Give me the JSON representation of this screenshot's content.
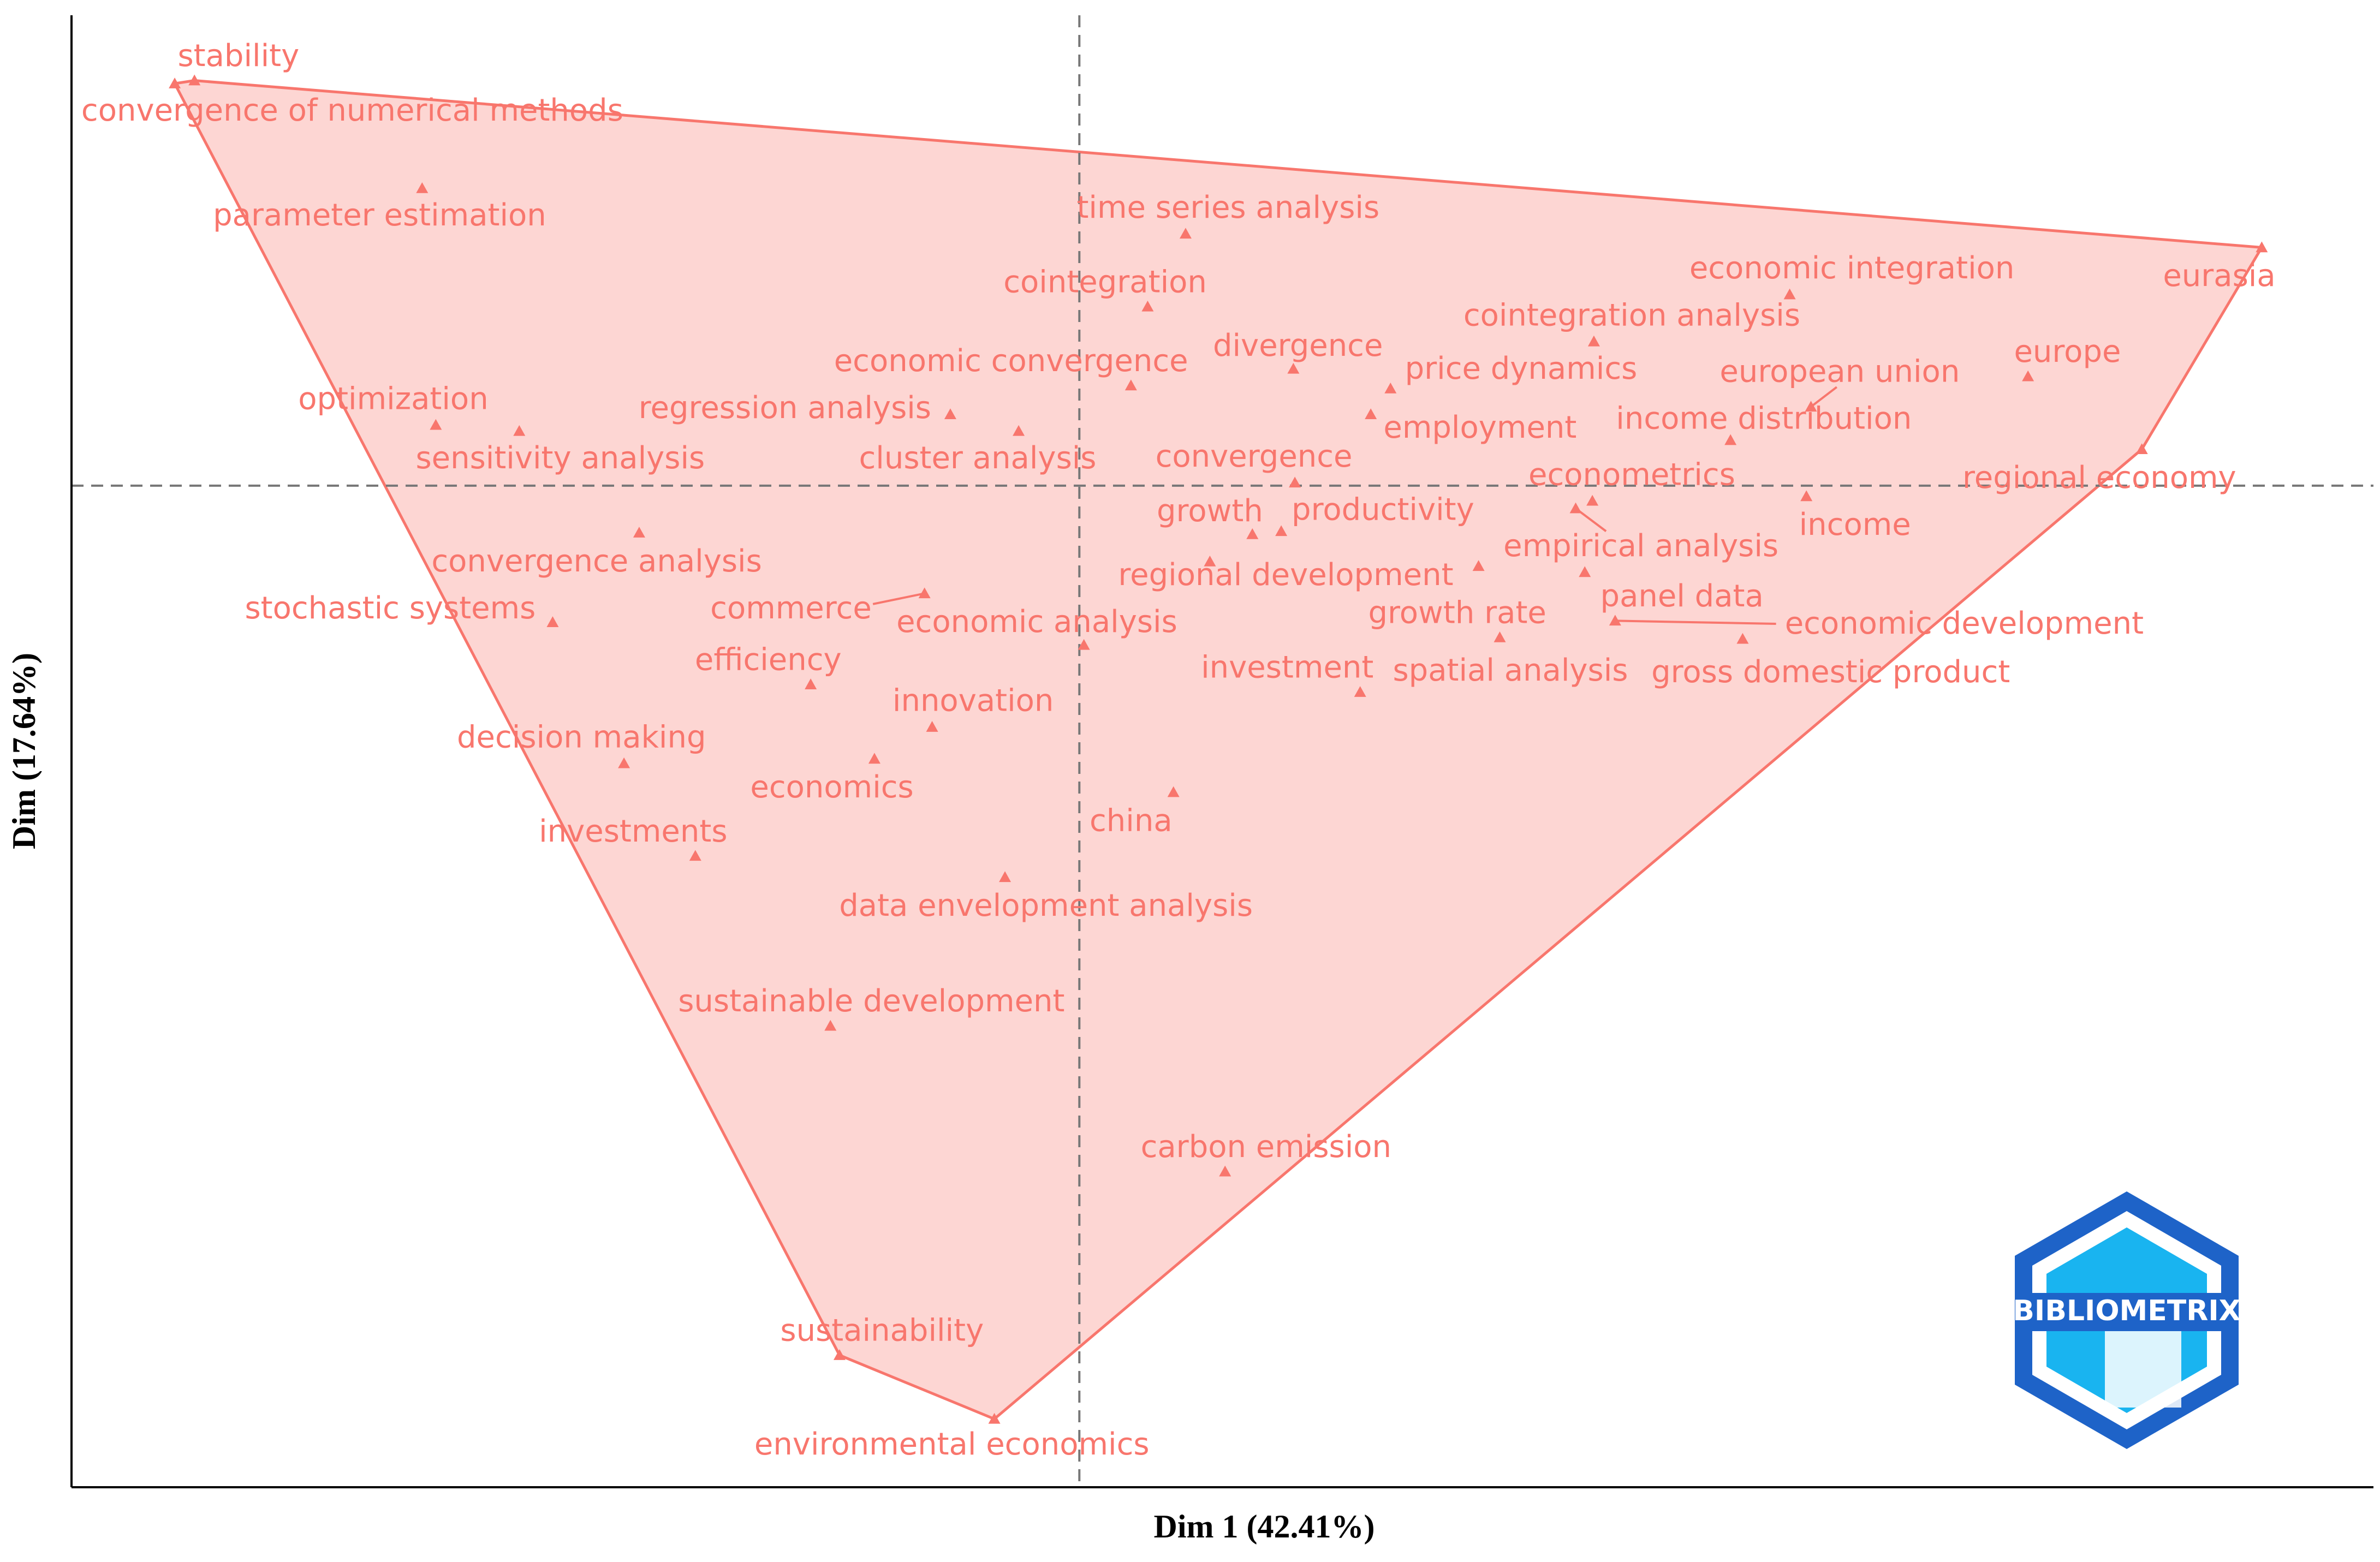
{
  "chart_data": {
    "type": "scatter",
    "x_label": "Dim 1 (42.41%)",
    "y_label": "Dim (17.64%)",
    "logo": "BIBLIOMETRIX",
    "color": "#f8766d",
    "hull": true,
    "zero_lines": true,
    "xlim": [
      -6.64,
      8.49
    ],
    "ylim": [
      -6.6,
      3.1
    ],
    "labels": [
      "stability",
      "convergence of numerical methods",
      "parameter estimation",
      "time series analysis",
      "cointegration",
      "economic integration",
      "eurasia",
      "cointegration analysis",
      "divergence",
      "price dynamics",
      "economic convergence",
      "european union",
      "europe",
      "optimization",
      "sensitivity analysis",
      "regression analysis",
      "cluster analysis",
      "employment",
      "income distribution",
      "regional economy",
      "convergence",
      "econometrics",
      "income",
      "growth",
      "productivity",
      "empirical analysis",
      "regional development",
      "growth rate",
      "panel data",
      "economic development",
      "spatial analysis",
      "gross domestic product",
      "investment",
      "convergence analysis",
      "stochastic systems",
      "commerce",
      "economic analysis",
      "efficiency",
      "innovation",
      "decision making",
      "economics",
      "china",
      "investments",
      "data envelopment analysis",
      "sustainable development",
      "carbon emission",
      "sustainability",
      "environmental economics"
    ],
    "x": [
      -5.83,
      -5.96,
      -4.33,
      0.7,
      0.45,
      4.68,
      7.79,
      3.39,
      1.41,
      2.05,
      0.34,
      4.82,
      6.25,
      -4.24,
      -3.69,
      -0.85,
      -0.4,
      1.92,
      4.29,
      7.0,
      1.42,
      3.38,
      4.79,
      1.14,
      1.33,
      3.27,
      0.86,
      2.63,
      3.33,
      3.53,
      2.77,
      4.37,
      1.85,
      -2.9,
      -3.47,
      -1.02,
      0.03,
      -1.77,
      -0.97,
      -3.0,
      -1.35,
      0.62,
      -2.53,
      -0.49,
      -1.64,
      0.96,
      -1.58,
      -0.56
    ],
    "values": [
      2.67,
      2.65,
      1.96,
      1.66,
      1.18,
      1.26,
      1.57,
      0.95,
      0.77,
      0.64,
      0.66,
      0.52,
      0.72,
      0.4,
      0.36,
      0.47,
      0.36,
      0.47,
      0.3,
      0.24,
      0.02,
      -0.1,
      -0.07,
      -0.32,
      -0.3,
      -0.15,
      -0.5,
      -0.53,
      -0.57,
      -0.89,
      -1.0,
      -1.01,
      -1.36,
      -0.31,
      -0.9,
      -0.71,
      -1.05,
      -1.31,
      -1.59,
      -1.83,
      -1.8,
      -2.02,
      -2.44,
      -2.58,
      -3.56,
      -4.52,
      -5.73,
      -6.15
    ]
  }
}
